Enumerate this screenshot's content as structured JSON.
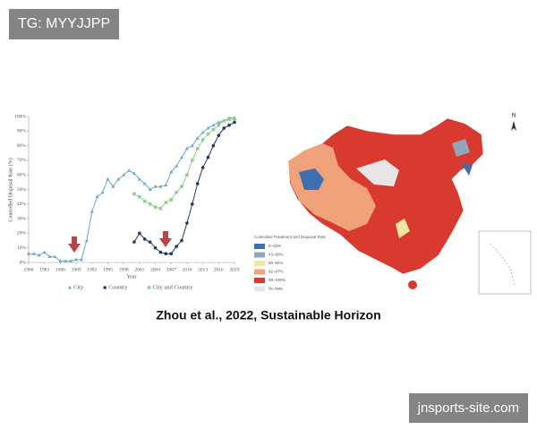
{
  "watermark_top": "TG: MYYJJPP",
  "watermark_bottom": "jnsports-site.com",
  "caption": "Zhou et al., 2022, Sustainable Horizon",
  "chart_data": {
    "type": "line",
    "y_label": "Controlled Disposal Rate (%)",
    "x_label": "Year",
    "x": [
      1980,
      1981,
      1982,
      1983,
      1984,
      1985,
      1986,
      1987,
      1988,
      1989,
      1990,
      1991,
      1992,
      1993,
      1994,
      1995,
      1996,
      1997,
      1998,
      1999,
      2000,
      2001,
      2002,
      2003,
      2004,
      2005,
      2006,
      2007,
      2008,
      2009,
      2010,
      2011,
      2012,
      2013,
      2014,
      2015,
      2016,
      2017,
      2018,
      2019
    ],
    "series": [
      {
        "name": "City",
        "color": "#6fa8c8",
        "marker": "triangle",
        "values": [
          6,
          6,
          5,
          7,
          4,
          4,
          1,
          1,
          1,
          2,
          2,
          15,
          35,
          45,
          48,
          57,
          52,
          57,
          60,
          63,
          61,
          57,
          54,
          50,
          52,
          52,
          53,
          62,
          66,
          72,
          78,
          80,
          85,
          89,
          92,
          94,
          96,
          97,
          99,
          99
        ]
      },
      {
        "name": "Country",
        "color": "#1f3a63",
        "marker": "circle",
        "values": [
          null,
          null,
          null,
          null,
          null,
          null,
          null,
          null,
          null,
          null,
          null,
          null,
          null,
          null,
          null,
          null,
          null,
          null,
          null,
          null,
          14,
          20,
          16,
          14,
          10,
          7,
          6,
          6,
          11,
          15,
          27,
          40,
          54,
          65,
          72,
          80,
          87,
          92,
          94,
          96
        ]
      },
      {
        "name": "City and Country",
        "color": "#8fd08f",
        "marker": "square",
        "values": [
          null,
          null,
          null,
          null,
          null,
          null,
          null,
          null,
          null,
          null,
          null,
          null,
          null,
          null,
          null,
          null,
          null,
          null,
          null,
          null,
          47,
          45,
          42,
          40,
          38,
          37,
          41,
          43,
          48,
          52,
          60,
          70,
          78,
          84,
          88,
          91,
          94,
          97,
          98,
          98
        ]
      }
    ],
    "xlim": [
      1980,
      2019
    ],
    "xticks": [
      1980,
      1983,
      1986,
      1989,
      1992,
      1995,
      1998,
      2001,
      2004,
      2007,
      2010,
      2013,
      2016,
      2019
    ],
    "ylim": [
      0,
      100
    ],
    "yticks": [
      {
        "value": 0,
        "label": "0%"
      },
      {
        "value": 10,
        "label": "10%"
      },
      {
        "value": 20,
        "label": "20%"
      },
      {
        "value": 30,
        "label": "30%"
      },
      {
        "value": 40,
        "label": "40%"
      },
      {
        "value": 50,
        "label": "50%"
      },
      {
        "value": 60,
        "label": "60%"
      },
      {
        "value": 70,
        "label": "70%"
      },
      {
        "value": 80,
        "label": "80%"
      },
      {
        "value": 90,
        "label": "90%"
      },
      {
        "value": 100,
        "label": "100%"
      }
    ],
    "grid": false
  },
  "map": {
    "north": "N",
    "legend_title": "Controlled Treatment and Disposal Rate",
    "legend": [
      {
        "label": "0–43%",
        "color": "#3f6fb0"
      },
      {
        "label": "43–80%",
        "color": "#8fa6bd"
      },
      {
        "label": "80–92%",
        "color": "#f3e6a0"
      },
      {
        "label": "92–97%",
        "color": "#f0a27a"
      },
      {
        "label": "98–100%",
        "color": "#d93a30"
      },
      {
        "label": "No data",
        "color": "#e6e6e6"
      }
    ]
  }
}
